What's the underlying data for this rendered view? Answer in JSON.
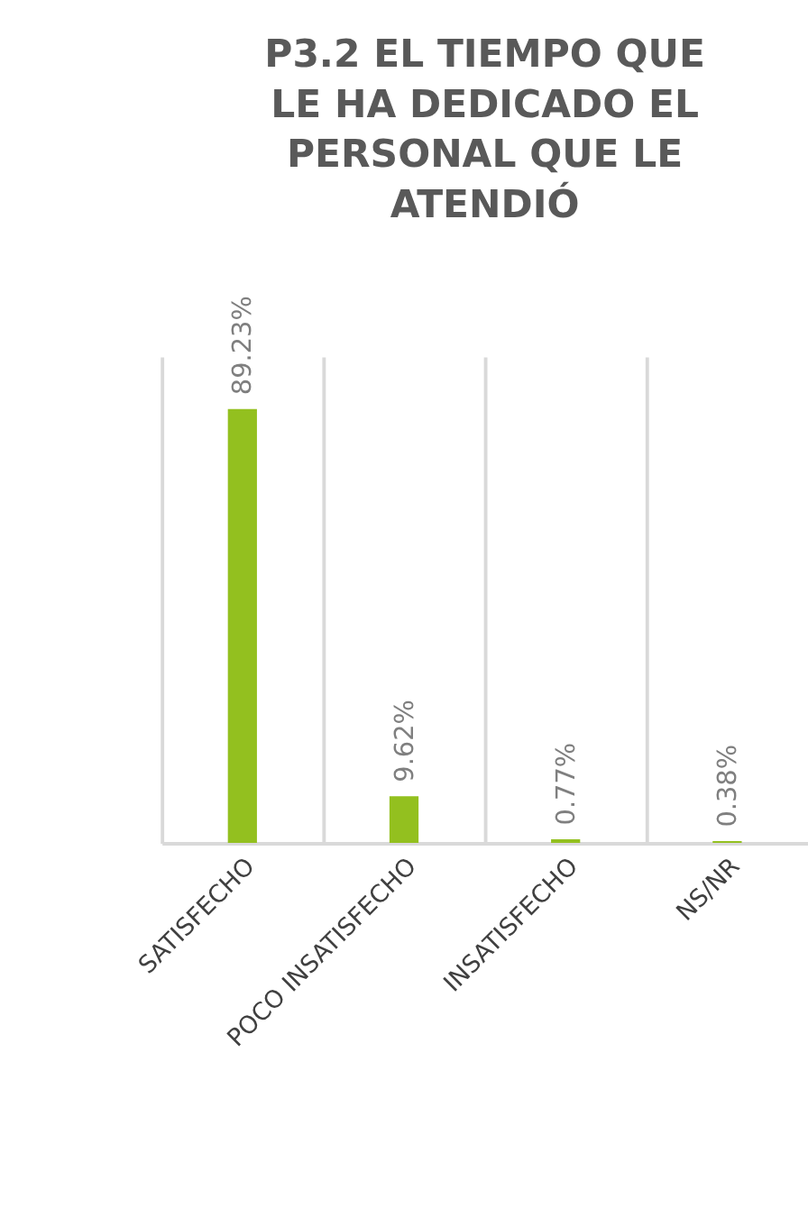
{
  "chart_data": {
    "type": "bar",
    "title": "P3.2 EL TIEMPO QUE LE HA DEDICADO EL PERSONAL QUE LE ATENDIÓ",
    "categories": [
      "SATISFECHO",
      "POCO INSATISFECHO",
      "INSATISFECHO",
      "NS/NR"
    ],
    "values": [
      89.23,
      9.62,
      0.77,
      0.38
    ],
    "value_labels": [
      "89.23%",
      "9.62%",
      "0.77%",
      "0.38%"
    ],
    "color": "#93c01f",
    "ylim": [
      0,
      100
    ],
    "grid": "x",
    "tick_labels": "x"
  }
}
